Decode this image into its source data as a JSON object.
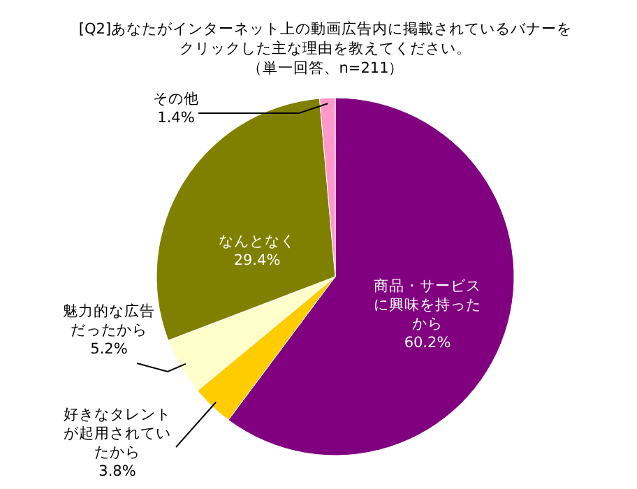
{
  "chart_data": {
    "type": "pie",
    "title": "[Q2]あなたがインターネット上の動画広告内に掲載されているバナーをクリックした主な理由を教えてください。",
    "subtitle": "（単一回答、n=211）",
    "categories": [
      "商品・サービスに興味を持ったから",
      "好きなタレントが起用されていたから",
      "魅力的な広告だったから",
      "なんとなく",
      "その他"
    ],
    "values": [
      60.2,
      3.8,
      5.2,
      29.4,
      1.4
    ],
    "value_labels": [
      "60.2%",
      "3.8%",
      "5.2%",
      "29.4%",
      "1.4%"
    ],
    "colors": [
      "#800080",
      "#ffcc00",
      "#ffffcc",
      "#808000",
      "#ff99cc"
    ]
  }
}
